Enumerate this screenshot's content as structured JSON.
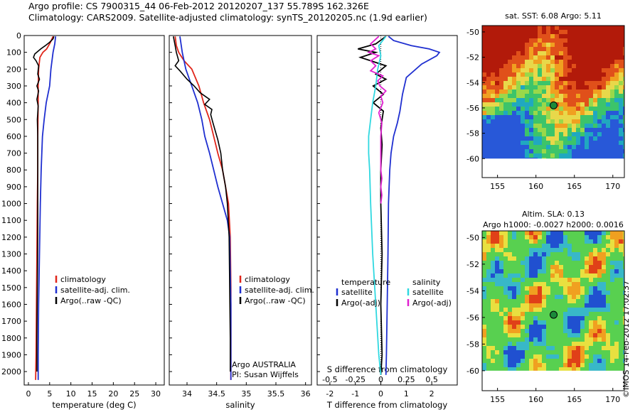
{
  "header": {
    "line1": "Argo profile: CS 7900315_44 06-Feb-2012 20120207_137 55.789S 162.326E",
    "line2": "Climatology: CARS2009. Satellite-adjusted climatology: synTS_20120205.nc (1.9d earlier)"
  },
  "credit": "©IMOS 14-Feb-2012 17:02:37",
  "colors": {
    "clim": "#e0261b",
    "sat": "#1f2fd0",
    "argo": "#000000",
    "sat_s": "#30d8e0",
    "argo_s": "#e020d0"
  },
  "chart_data": [
    {
      "type": "line",
      "xlabel": "temperature (deg C)",
      "xlim": [
        -1,
        32
      ],
      "xticks": [
        "0",
        "5",
        "10",
        "15",
        "20",
        "25",
        "30"
      ],
      "ylim": [
        2080,
        0
      ],
      "yticks": [
        "0",
        "100",
        "200",
        "300",
        "400",
        "500",
        "600",
        "700",
        "800",
        "900",
        "1000",
        "1100",
        "1200",
        "1300",
        "1400",
        "1500",
        "1600",
        "1700",
        "1800",
        "1900",
        "2000"
      ],
      "legend": [
        "climatology",
        "satellite-adj. clim.",
        "Argo(..raw -QC)"
      ],
      "series": [
        {
          "name": "climatology",
          "points": [
            [
              5.8,
              5
            ],
            [
              5.2,
              40
            ],
            [
              4.3,
              80
            ],
            [
              3.4,
              100
            ],
            [
              2.7,
              130
            ],
            [
              2.4,
              200
            ],
            [
              2.3,
              300
            ],
            [
              2.3,
              400
            ],
            [
              2.2,
              600
            ],
            [
              2.2,
              800
            ],
            [
              2.1,
              1000
            ],
            [
              2.0,
              1300
            ],
            [
              1.9,
              1600
            ],
            [
              1.8,
              1900
            ],
            [
              1.7,
              2050
            ]
          ]
        },
        {
          "name": "satellite-adj. clim.",
          "points": [
            [
              6.4,
              5
            ],
            [
              6.2,
              50
            ],
            [
              5.8,
              100
            ],
            [
              5.3,
              200
            ],
            [
              5.0,
              300
            ],
            [
              4.2,
              400
            ],
            [
              3.7,
              500
            ],
            [
              3.3,
              600
            ],
            [
              3.0,
              800
            ],
            [
              2.8,
              1000
            ],
            [
              2.6,
              1300
            ],
            [
              2.4,
              1600
            ],
            [
              2.3,
              1900
            ],
            [
              2.3,
              2050
            ]
          ]
        },
        {
          "name": "Argo(..raw -QC)",
          "points": [
            [
              6.0,
              5
            ],
            [
              5.8,
              20
            ],
            [
              5.0,
              40
            ],
            [
              4.0,
              60
            ],
            [
              2.9,
              80
            ],
            [
              1.5,
              110
            ],
            [
              1.2,
              130
            ],
            [
              1.8,
              150
            ],
            [
              2.4,
              180
            ],
            [
              2.2,
              230
            ],
            [
              2.6,
              260
            ],
            [
              2.0,
              300
            ],
            [
              2.4,
              330
            ],
            [
              2.0,
              380
            ],
            [
              2.3,
              420
            ],
            [
              2.1,
              500
            ],
            [
              2.2,
              600
            ],
            [
              2.2,
              800
            ],
            [
              2.2,
              1000
            ],
            [
              2.2,
              1200
            ],
            [
              2.1,
              1500
            ],
            [
              2.0,
              1800
            ],
            [
              2.0,
              2000
            ]
          ]
        }
      ]
    },
    {
      "type": "line",
      "xlabel": "salinity",
      "xlim": [
        33.7,
        36.1
      ],
      "xticks": [
        "34",
        "34.5",
        "35",
        "35.5",
        "36"
      ],
      "ylim": [
        2080,
        0
      ],
      "legend": [
        "climatology",
        "satellite-adj. clim.",
        "Argo(..raw -QC)"
      ],
      "annotation": [
        "Argo AUSTRALIA",
        "PI: Susan Wijffels"
      ],
      "series": [
        {
          "name": "climatology",
          "points": [
            [
              33.8,
              5
            ],
            [
              33.82,
              60
            ],
            [
              33.86,
              100
            ],
            [
              33.95,
              150
            ],
            [
              34.08,
              200
            ],
            [
              34.2,
              300
            ],
            [
              34.28,
              400
            ],
            [
              34.38,
              500
            ],
            [
              34.45,
              600
            ],
            [
              34.52,
              700
            ],
            [
              34.6,
              800
            ],
            [
              34.65,
              900
            ],
            [
              34.7,
              1000
            ],
            [
              34.73,
              1200
            ],
            [
              34.74,
              1500
            ],
            [
              34.74,
              1800
            ],
            [
              34.74,
              2050
            ]
          ]
        },
        {
          "name": "satellite-adj. clim.",
          "points": [
            [
              33.88,
              5
            ],
            [
              33.92,
              100
            ],
            [
              33.98,
              200
            ],
            [
              34.08,
              300
            ],
            [
              34.18,
              400
            ],
            [
              34.25,
              500
            ],
            [
              34.3,
              600
            ],
            [
              34.38,
              700
            ],
            [
              34.45,
              800
            ],
            [
              34.52,
              900
            ],
            [
              34.6,
              1000
            ],
            [
              34.68,
              1100
            ],
            [
              34.72,
              1200
            ],
            [
              34.73,
              1400
            ],
            [
              34.74,
              1600
            ],
            [
              34.74,
              1900
            ],
            [
              34.74,
              2050
            ]
          ]
        },
        {
          "name": "Argo(..raw -QC)",
          "points": [
            [
              33.77,
              5
            ],
            [
              33.8,
              60
            ],
            [
              33.82,
              100
            ],
            [
              33.86,
              150
            ],
            [
              33.8,
              180
            ],
            [
              33.88,
              210
            ],
            [
              34.0,
              260
            ],
            [
              34.12,
              300
            ],
            [
              34.22,
              340
            ],
            [
              34.3,
              360
            ],
            [
              34.38,
              380
            ],
            [
              34.3,
              410
            ],
            [
              34.42,
              440
            ],
            [
              34.4,
              470
            ],
            [
              34.43,
              510
            ],
            [
              34.47,
              560
            ],
            [
              34.52,
              620
            ],
            [
              34.57,
              700
            ],
            [
              34.6,
              800
            ],
            [
              34.65,
              900
            ],
            [
              34.68,
              1000
            ],
            [
              34.71,
              1200
            ],
            [
              34.72,
              1500
            ],
            [
              34.73,
              1800
            ],
            [
              34.73,
              2000
            ]
          ]
        }
      ]
    },
    {
      "type": "line",
      "xlabel": "T difference from climatology",
      "xlabel2": "S difference from climatology",
      "xlim": [
        -2.5,
        3.0
      ],
      "xticks": [
        "-2",
        "-1",
        "0",
        "1",
        "2"
      ],
      "xticks_top": [
        "-0.5",
        "-0.25",
        "0",
        "0.25",
        "0.5"
      ],
      "ylim": [
        2080,
        0
      ],
      "legend_titles": [
        "temperature",
        "salinity"
      ],
      "legend": [
        "satellite",
        "Argo(-adj)",
        "satellite",
        "Argo(-adj)"
      ],
      "series": [
        {
          "name": "satellite",
          "points": [
            [
              0.3,
              5
            ],
            [
              0.5,
              30
            ],
            [
              1.2,
              60
            ],
            [
              1.9,
              80
            ],
            [
              2.3,
              100
            ],
            [
              2.2,
              120
            ],
            [
              1.6,
              170
            ],
            [
              1.0,
              250
            ],
            [
              0.85,
              350
            ],
            [
              0.75,
              450
            ],
            [
              0.65,
              520
            ],
            [
              0.5,
              600
            ],
            [
              0.4,
              700
            ],
            [
              0.35,
              800
            ],
            [
              0.3,
              1000
            ],
            [
              0.28,
              1300
            ],
            [
              0.25,
              1600
            ],
            [
              0.22,
              1900
            ],
            [
              0.2,
              2020
            ]
          ]
        },
        {
          "name": "Argo(-adj)",
          "points": [
            [
              0.2,
              5
            ],
            [
              -0.2,
              50
            ],
            [
              -0.9,
              80
            ],
            [
              -0.2,
              100
            ],
            [
              -0.8,
              130
            ],
            [
              -0.4,
              150
            ],
            [
              0.2,
              180
            ],
            [
              -0.2,
              230
            ],
            [
              0.2,
              260
            ],
            [
              -0.3,
              300
            ],
            [
              0.1,
              350
            ],
            [
              -0.3,
              400
            ],
            [
              0.1,
              450
            ],
            [
              0.0,
              550
            ],
            [
              0.05,
              650
            ],
            [
              0.0,
              800
            ],
            [
              0.0,
              1000
            ],
            [
              0.05,
              1300
            ],
            [
              0.0,
              1600
            ],
            [
              0.05,
              1900
            ],
            [
              0.0,
              2020
            ]
          ]
        },
        {
          "name": "satellite",
          "points": [
            [
              0.05,
              5
            ],
            [
              -0.02,
              60
            ],
            [
              0.0,
              120
            ],
            [
              -0.03,
              200
            ],
            [
              -0.05,
              300
            ],
            [
              -0.08,
              400
            ],
            [
              -0.1,
              500
            ],
            [
              -0.12,
              600
            ],
            [
              -0.12,
              700
            ],
            [
              -0.11,
              800
            ],
            [
              -0.1,
              1000
            ],
            [
              -0.08,
              1300
            ],
            [
              -0.05,
              1600
            ],
            [
              -0.02,
              1900
            ],
            [
              0.0,
              2020
            ]
          ]
        },
        {
          "name": "Argo(-adj)",
          "points": [
            [
              -0.02,
              5
            ],
            [
              -0.1,
              50
            ],
            [
              -0.05,
              80
            ],
            [
              -0.12,
              100
            ],
            [
              -0.02,
              120
            ],
            [
              -0.1,
              150
            ],
            [
              -0.05,
              180
            ],
            [
              -0.1,
              210
            ],
            [
              0.02,
              240
            ],
            [
              -0.03,
              270
            ],
            [
              -0.01,
              300
            ],
            [
              0.05,
              330
            ],
            [
              0.0,
              360
            ],
            [
              0.02,
              400
            ],
            [
              -0.02,
              460
            ],
            [
              0.01,
              520
            ],
            [
              0.0,
              600
            ],
            [
              0.0,
              700
            ],
            [
              0.0,
              800
            ],
            [
              0.01,
              850
            ],
            [
              0.0,
              900
            ],
            [
              0.01,
              950
            ],
            [
              0.0,
              1000
            ]
          ]
        }
      ]
    },
    {
      "type": "heatmap",
      "title": "sat. SST: 6.08 Argo: 5.11",
      "xlim": [
        153,
        171.5
      ],
      "ylim": [
        -61.5,
        -49.5
      ],
      "xticks": [
        "155",
        "160",
        "165",
        "170"
      ],
      "yticks": [
        "-50",
        "-52",
        "-54",
        "-56",
        "-58",
        "-60"
      ],
      "marker": {
        "lon": 162.3,
        "lat": -55.8
      }
    },
    {
      "type": "heatmap",
      "title": "Altim. SLA: 0.13",
      "subtitle": "Argo h1000: -0.0027 h2000: 0.0016",
      "xlim": [
        153,
        171.5
      ],
      "ylim": [
        -61.5,
        -49.5
      ],
      "xticks": [
        "155",
        "160",
        "165",
        "170"
      ],
      "yticks": [
        "-50",
        "-52",
        "-54",
        "-56",
        "-58",
        "-60"
      ],
      "marker": {
        "lon": 162.3,
        "lat": -55.8
      }
    }
  ]
}
